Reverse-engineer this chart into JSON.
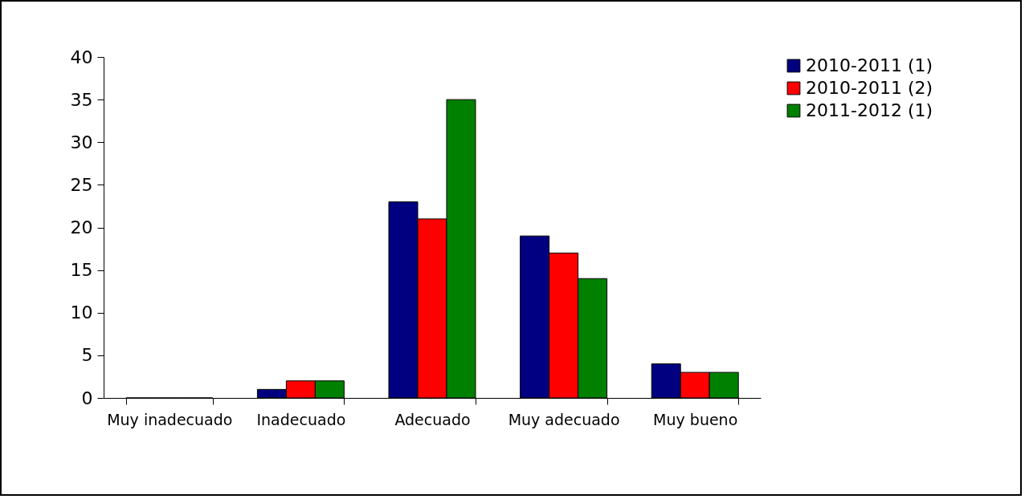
{
  "chart_data": {
    "type": "bar",
    "categories": [
      "Muy inadecuado",
      "Inadecuado",
      "Adecuado",
      "Muy adecuado",
      "Muy bueno"
    ],
    "series": [
      {
        "name": "2010-2011 (1)",
        "color": "#000080",
        "values": [
          0,
          1,
          23,
          19,
          4
        ]
      },
      {
        "name": "2010-2011 (2)",
        "color": "#ff0000",
        "values": [
          0,
          2,
          21,
          17,
          3
        ]
      },
      {
        "name": "2011-2012 (1)",
        "color": "#008000",
        "values": [
          0,
          2,
          35,
          14,
          3
        ]
      }
    ],
    "ylim": [
      0,
      40
    ],
    "yticks": [
      0,
      5,
      10,
      15,
      20,
      25,
      30,
      35,
      40
    ],
    "grid": false,
    "legend": "right"
  }
}
